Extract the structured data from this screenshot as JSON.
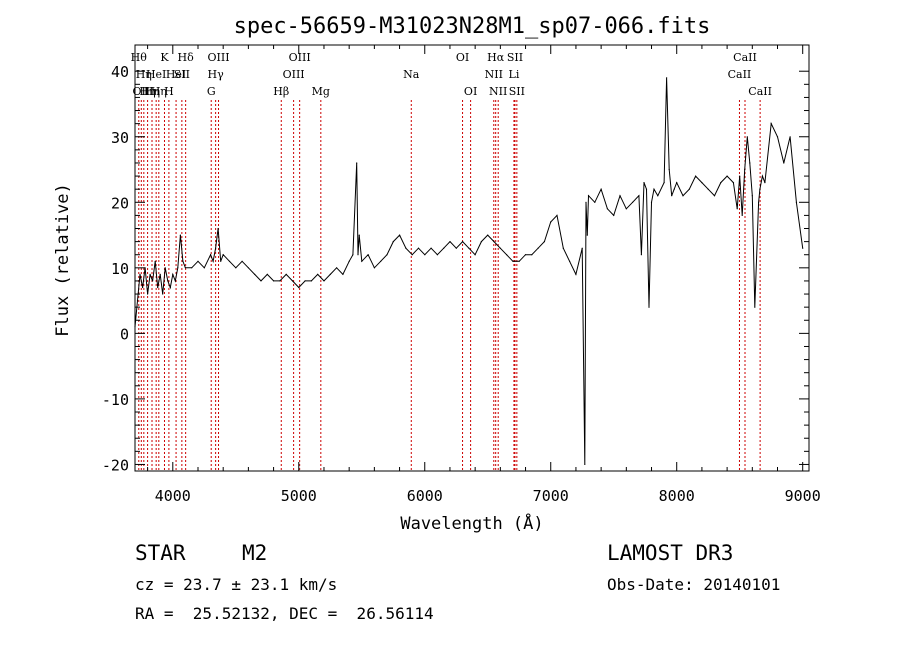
{
  "chart_data": {
    "type": "line",
    "title": "spec-56659-M31023N28M1_sp07-066.fits",
    "xlabel": "Wavelength (Å)",
    "ylabel": "Flux (relative)",
    "xlim": [
      3700,
      9050
    ],
    "ylim": [
      -21,
      44
    ],
    "x_ticks": [
      4000,
      5000,
      6000,
      7000,
      8000,
      9000
    ],
    "y_ticks": [
      -20,
      -10,
      0,
      10,
      20,
      30,
      40
    ],
    "grid": false,
    "line_color": "#000000",
    "marker_color": "#cc0000",
    "series": [
      {
        "x": [
          3700,
          3720,
          3740,
          3760,
          3780,
          3800,
          3820,
          3840,
          3860,
          3880,
          3900,
          3920,
          3940,
          3960,
          3980,
          4000,
          4020,
          4040,
          4060,
          4080,
          4100,
          4150,
          4200,
          4250,
          4300,
          4320,
          4340,
          4360,
          4380,
          4400,
          4450,
          4500,
          4550,
          4600,
          4650,
          4700,
          4750,
          4800,
          4850,
          4900,
          4950,
          5000,
          5050,
          5100,
          5150,
          5200,
          5250,
          5300,
          5350,
          5400,
          5430,
          5460,
          5470,
          5480,
          5500,
          5550,
          5600,
          5650,
          5700,
          5750,
          5800,
          5850,
          5900,
          5950,
          6000,
          6050,
          6100,
          6150,
          6200,
          6250,
          6300,
          6350,
          6400,
          6450,
          6500,
          6550,
          6600,
          6650,
          6700,
          6750,
          6800,
          6850,
          6900,
          6950,
          7000,
          7050,
          7100,
          7150,
          7200,
          7250,
          7270,
          7280,
          7290,
          7300,
          7350,
          7400,
          7450,
          7500,
          7550,
          7600,
          7650,
          7700,
          7720,
          7740,
          7760,
          7780,
          7800,
          7820,
          7850,
          7900,
          7920,
          7940,
          7960,
          7980,
          8000,
          8050,
          8100,
          8150,
          8200,
          8250,
          8300,
          8350,
          8400,
          8450,
          8480,
          8500,
          8520,
          8540,
          8560,
          8580,
          8600,
          8620,
          8650,
          8660,
          8680,
          8700,
          8750,
          8800,
          8850,
          8900,
          8950,
          9000
        ],
        "y": [
          1,
          5,
          9,
          7,
          10,
          6,
          9,
          8,
          11,
          7,
          9,
          6,
          10,
          8,
          7,
          9,
          8,
          10,
          15,
          11,
          10,
          10,
          11,
          10,
          12,
          11,
          13,
          16,
          11,
          12,
          11,
          10,
          11,
          10,
          9,
          8,
          9,
          8,
          8,
          9,
          8,
          7,
          8,
          8,
          9,
          8,
          9,
          10,
          9,
          11,
          12,
          26,
          12,
          15,
          11,
          12,
          10,
          11,
          12,
          14,
          15,
          13,
          12,
          13,
          12,
          13,
          12,
          13,
          14,
          13,
          14,
          13,
          12,
          14,
          15,
          14,
          13,
          12,
          11,
          11,
          12,
          12,
          13,
          14,
          17,
          18,
          13,
          11,
          9,
          13,
          -20,
          20,
          15,
          21,
          20,
          22,
          19,
          18,
          21,
          19,
          20,
          21,
          12,
          23,
          22,
          4,
          20,
          22,
          21,
          23,
          39,
          25,
          21,
          22,
          23,
          21,
          22,
          24,
          23,
          22,
          21,
          23,
          24,
          23,
          19,
          24,
          18,
          25,
          30,
          26,
          21,
          4,
          20,
          22,
          24,
          23,
          32,
          30,
          26,
          30,
          20,
          13
        ]
      }
    ],
    "line_markers": [
      {
        "x": 3730,
        "labels": [
          "Hθ"
        ],
        "row": 0
      },
      {
        "x": 3750,
        "labels": [
          "OII"
        ],
        "row": 2
      },
      {
        "x": 3770,
        "labels": [
          "Hη"
        ],
        "row": 1
      },
      {
        "x": 3800,
        "labels": [
          "Hη"
        ],
        "row": 2
      },
      {
        "x": 3835,
        "labels": [
          "Hη"
        ],
        "row": 2
      },
      {
        "x": 3868,
        "labels": [
          "HeI"
        ],
        "row": 1
      },
      {
        "x": 3889,
        "labels": [
          "Hη"
        ],
        "row": 2
      },
      {
        "x": 3934,
        "labels": [
          "K"
        ],
        "row": 0
      },
      {
        "x": 3969,
        "labels": [
          "H"
        ],
        "row": 2
      },
      {
        "x": 4026,
        "labels": [
          "HeI"
        ],
        "row": 1
      },
      {
        "x": 4072,
        "labels": [
          "SII"
        ],
        "row": 1
      },
      {
        "x": 4102,
        "labels": [
          "Hδ"
        ],
        "row": 0
      },
      {
        "x": 4305,
        "labels": [
          "G"
        ],
        "row": 2
      },
      {
        "x": 4340,
        "labels": [
          "Hγ"
        ],
        "row": 1
      },
      {
        "x": 4363,
        "labels": [
          "OIII"
        ],
        "row": 0
      },
      {
        "x": 4861,
        "labels": [
          "Hβ"
        ],
        "row": 2
      },
      {
        "x": 4959,
        "labels": [
          "OIII"
        ],
        "row": 1
      },
      {
        "x": 5007,
        "labels": [
          "OIII"
        ],
        "row": 0
      },
      {
        "x": 5175,
        "labels": [
          "Mg"
        ],
        "row": 2
      },
      {
        "x": 5893,
        "labels": [
          "Na"
        ],
        "row": 1
      },
      {
        "x": 6300,
        "labels": [
          "OI"
        ],
        "row": 0
      },
      {
        "x": 6364,
        "labels": [
          "OI"
        ],
        "row": 2
      },
      {
        "x": 6548,
        "labels": [
          "NII"
        ],
        "row": 1
      },
      {
        "x": 6563,
        "labels": [
          "Hα"
        ],
        "row": 0
      },
      {
        "x": 6583,
        "labels": [
          "NII"
        ],
        "row": 2
      },
      {
        "x": 6708,
        "labels": [
          "Li"
        ],
        "row": 1
      },
      {
        "x": 6716,
        "labels": [
          "SII"
        ],
        "row": 0
      },
      {
        "x": 6731,
        "labels": [
          "SII"
        ],
        "row": 2
      },
      {
        "x": 8498,
        "labels": [
          "CaII"
        ],
        "row": 1
      },
      {
        "x": 8542,
        "labels": [
          "CaII"
        ],
        "row": 0
      },
      {
        "x": 8662,
        "labels": [
          "CaII"
        ],
        "row": 2
      }
    ]
  },
  "info": {
    "object_class": "STAR",
    "subclass": "M2",
    "survey": "LAMOST DR3",
    "redshift_text": "cz = 23.7 ± 23.1 km/s",
    "obs_date_text": "Obs-Date: 20140101",
    "coords_text": "RA =  25.52132, DEC =  26.56114"
  }
}
